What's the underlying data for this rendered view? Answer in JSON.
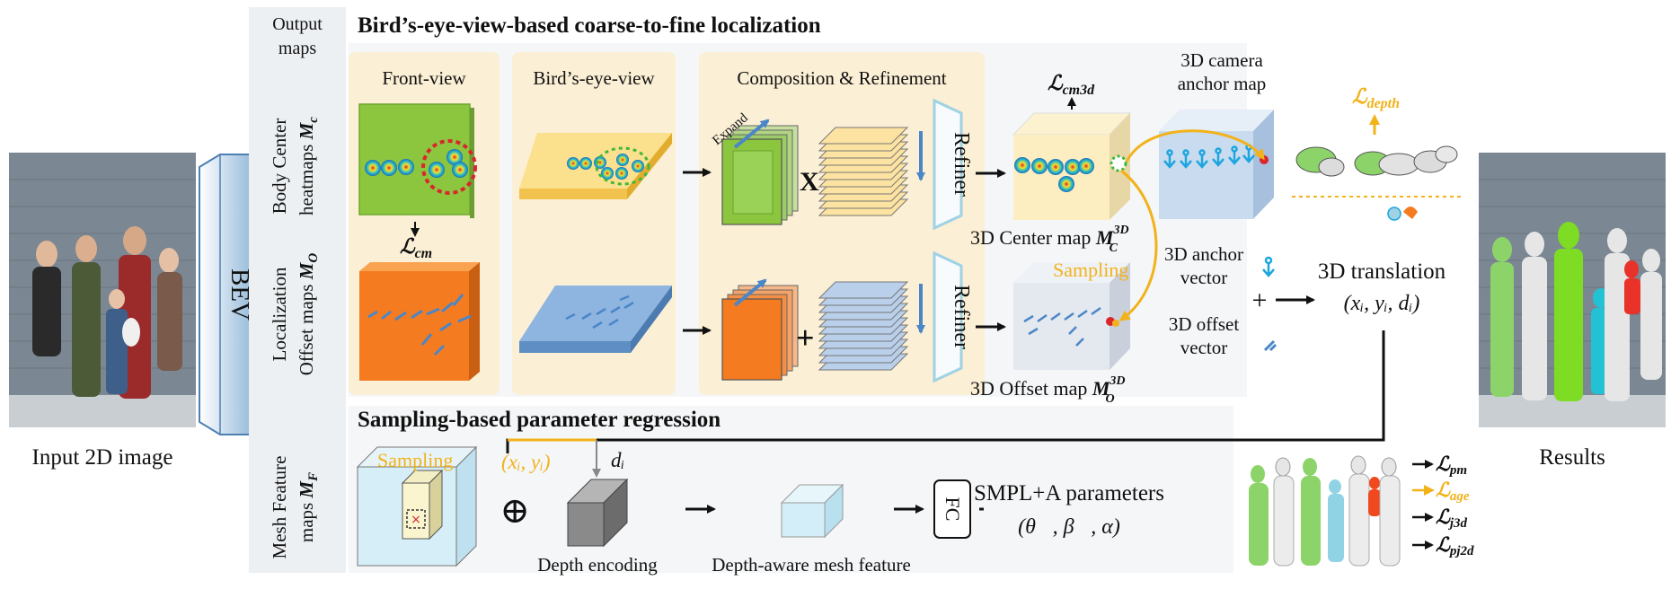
{
  "input_label": "Input 2D image",
  "results_label": "Results",
  "bev_label": "BEV",
  "output_maps": {
    "line1": "Output",
    "line2": "maps"
  },
  "row_labels": {
    "body_center": {
      "line1": "Body Center",
      "line2": "heatmaps ",
      "sym": "M",
      "sub": "c"
    },
    "localization": {
      "line1": "Localization",
      "line2": "Offset maps ",
      "sym": "M",
      "sub": "O"
    },
    "mesh_feature": {
      "line1": "Mesh Feature",
      "line2": "maps ",
      "sym": "M",
      "sub": "F"
    }
  },
  "section_titles": {
    "localization": "Bird’s-eye-view-based coarse-to-fine localization",
    "regression": "Sampling-based parameter regression"
  },
  "panels": {
    "front_view": "Front-view",
    "birds_eye_view": "Bird’s-eye-view",
    "composition": "Composition & Refinement"
  },
  "operators": {
    "expand": "Expand",
    "multiply": "X",
    "plus": "+",
    "concat": "⊕"
  },
  "refiner_label": "Refiner",
  "losses": {
    "cm": {
      "sym": "ℒ",
      "sub": "cm"
    },
    "cm3d": {
      "sym": "ℒ",
      "sub": "cm3d"
    },
    "depth": {
      "sym": "ℒ",
      "sub": "depth"
    },
    "pm": {
      "sym": "ℒ",
      "sub": "pm"
    },
    "age": {
      "sym": "ℒ",
      "sub": "age"
    },
    "j3d": {
      "sym": "ℒ",
      "sub": "j3d"
    },
    "pj2d": {
      "sym": "ℒ",
      "sub": "pj2d"
    }
  },
  "maps_3d": {
    "center_text": "3D Center map ",
    "center_sym": "M",
    "center_sub": "C",
    "center_sup": "3D",
    "offset_text": "3D Offset map ",
    "offset_sym": "M",
    "offset_sub": "O",
    "offset_sup": "3D",
    "sampling": "Sampling",
    "camera_anchor": {
      "line1": "3D camera",
      "line2": "anchor map"
    },
    "anchor_vector": {
      "line1": "3D anchor",
      "line2": "vector"
    },
    "offset_vector": {
      "line1": "3D offset",
      "line2": "vector"
    }
  },
  "translation": {
    "label": "3D translation",
    "formula": "(xᵢ, yᵢ, dᵢ)"
  },
  "regression": {
    "sampling": "Sampling",
    "coords": "(xᵢ, yᵢ)",
    "depth_var": "dᵢ",
    "depth_encoding": "Depth encoding",
    "depth_feature": "Depth-aware mesh feature",
    "fc": "FC",
    "smpl_label": "SMPL+A parameters",
    "smpl_formula": "(θ⃗, β⃗, α)"
  },
  "colors": {
    "green": "#8cc63f",
    "orange": "#f47b20",
    "yellow": "#f2b21a",
    "blue_arrow": "#4a86c8",
    "panel_bg": "#fbefd5"
  }
}
